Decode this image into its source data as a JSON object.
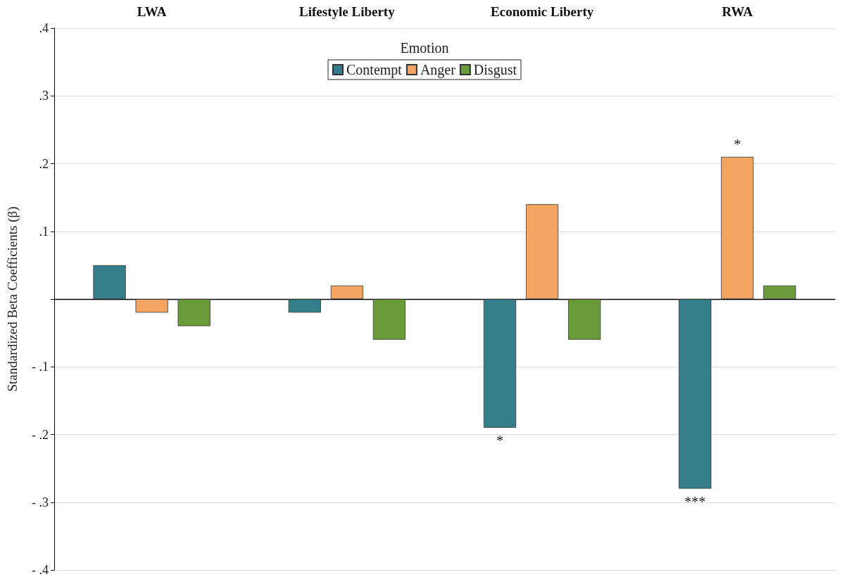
{
  "chart_data": {
    "type": "bar",
    "categories": [
      "LWA",
      "Lifestyle Liberty",
      "Economic Liberty",
      "RWA"
    ],
    "series": [
      {
        "name": "Contempt",
        "color": "#367d8a",
        "values": [
          0.05,
          -0.02,
          -0.19,
          -0.28
        ]
      },
      {
        "name": "Anger",
        "color": "#f2a462",
        "values": [
          -0.02,
          0.02,
          0.14,
          0.21
        ]
      },
      {
        "name": "Disgust",
        "color": "#6b9a3a",
        "values": [
          -0.04,
          -0.06,
          -0.06,
          0.02
        ]
      }
    ],
    "ylabel": "Standardized Beta Coefficients (β)",
    "legend_title": "Emotion",
    "legend": "top",
    "ylim": [
      -0.4,
      0.4
    ],
    "yticks": [
      {
        "value": -0.4,
        "label": "- .4"
      },
      {
        "value": -0.3,
        "label": "- .3"
      },
      {
        "value": -0.2,
        "label": "- .2"
      },
      {
        "value": -0.1,
        "label": "- .1"
      },
      {
        "value": 0,
        "label": null
      },
      {
        "value": 0.1,
        "label": ".1"
      },
      {
        "value": 0.2,
        "label": ".2"
      },
      {
        "value": 0.3,
        "label": ".3"
      },
      {
        "value": 0.4,
        "label": ".4"
      }
    ],
    "grid": "y",
    "annotations": [
      "*",
      "***",
      {
        "text": "*",
        "x": "RWA",
        "y": 0.21
      }
    ]
  }
}
